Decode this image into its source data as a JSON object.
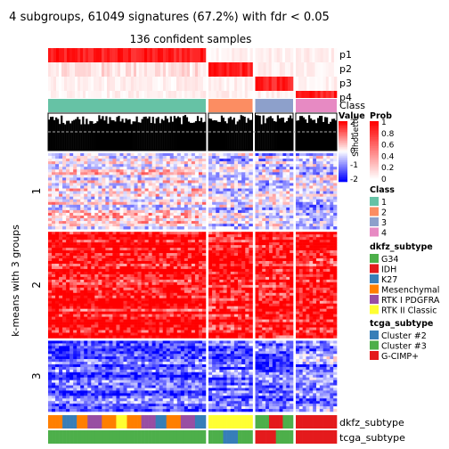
{
  "chart_data": {
    "type": "heatmap",
    "title": "4 subgroups, 61049 signatures (67.2%) with fdr < 0.05",
    "subtitle": "136 confident samples",
    "ylabel": "k-means with 3 groups",
    "colors": {
      "high": "#ff0000",
      "mid": "#ffffff",
      "low": "#0000ff",
      "class": {
        "1": "#66c2a5",
        "2": "#fc8d62",
        "3": "#8da0cb",
        "4": "#e78ac3"
      },
      "dkfz": {
        "G34": "#4daf4a",
        "IDH": "#e41a1c",
        "K27": "#377eb8",
        "Mesenchymal": "#ff7f00",
        "RTK I PDGFRA": "#984ea3",
        "RTK II Classic": "#ffff33"
      },
      "tcga": {
        "Cluster #2": "#377eb8",
        "Cluster #3": "#4daf4a",
        "G-CIMP+": "#e41a1c"
      }
    },
    "annotation_rows": [
      "p1",
      "p2",
      "p3",
      "p4",
      "Class"
    ],
    "silhouette_label": "Silhouette",
    "column_groups": [
      {
        "class": "1",
        "share": 0.5
      },
      {
        "class": "2",
        "share": 0.14
      },
      {
        "class": "3",
        "share": 0.12
      },
      {
        "class": "4",
        "share": 0.13
      }
    ],
    "row_groups": [
      {
        "label": "1",
        "share": 0.3,
        "mean": 0.05
      },
      {
        "label": "2",
        "share": 0.42,
        "mean": 0.92
      },
      {
        "label": "3",
        "share": 0.28,
        "mean": -0.62
      }
    ],
    "bottom_annotations": [
      "dkfz_subtype",
      "tcga_subtype"
    ],
    "legends": {
      "value": {
        "title": "Value",
        "ticks": [
          "2",
          "1",
          "0",
          "-1",
          "-2"
        ]
      },
      "prob": {
        "title": "Prob",
        "ticks": [
          "1",
          "0.8",
          "0.6",
          "0.4",
          "0.2",
          "0"
        ]
      },
      "class_title": "Class",
      "class_items": [
        "1",
        "2",
        "3",
        "4"
      ],
      "dkfz_title": "dkfz_subtype",
      "dkfz_items": [
        "G34",
        "IDH",
        "K27",
        "Mesenchymal",
        "RTK I PDGFRA",
        "RTK II Classic"
      ],
      "tcga_title": "tcga_subtype",
      "tcga_items": [
        "Cluster #2",
        "Cluster #3",
        "G-CIMP+"
      ]
    }
  }
}
